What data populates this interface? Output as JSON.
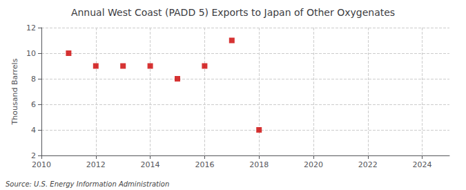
{
  "chart_data": {
    "type": "scatter",
    "title": "Annual West Coast (PADD 5) Exports to Japan of Other Oxygenates",
    "ylabel": "Thousand Barrels",
    "annotations": [
      "Source: U.S. Energy Information Administration"
    ],
    "x": [
      2011,
      2012,
      2013,
      2014,
      2015,
      2016,
      2017,
      2018
    ],
    "values": [
      10,
      9,
      9,
      9,
      8,
      9,
      11,
      4
    ],
    "color": "#cc0000",
    "marker": "square",
    "xlim": [
      2010,
      2025
    ],
    "ylim": [
      2,
      12
    ],
    "xticks": [
      2010,
      2012,
      2014,
      2016,
      2018,
      2020,
      2022,
      2024
    ],
    "yticks": [
      2,
      4,
      6,
      8,
      10,
      12
    ],
    "grid": true
  }
}
